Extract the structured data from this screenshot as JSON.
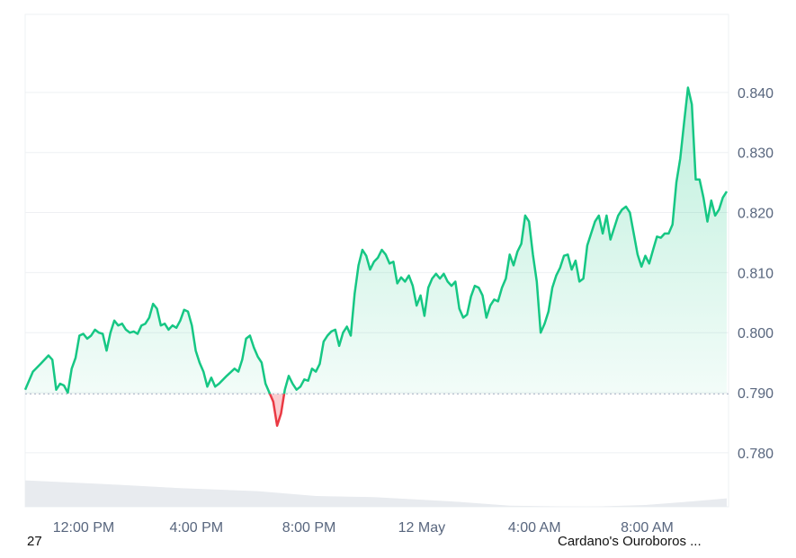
{
  "chart_data": {
    "type": "area",
    "y_ticks": [
      "0.840",
      "0.830",
      "0.820",
      "0.810",
      "0.800",
      "0.790",
      "0.780"
    ],
    "x_ticks": [
      "12:00 PM",
      "4:00 PM",
      "8:00 PM",
      "12 May",
      "4:00 AM",
      "8:00 AM"
    ],
    "ylim": [
      0.771,
      0.853
    ],
    "reference_value": 0.7898,
    "price_series": [
      [
        0,
        0.7905
      ],
      [
        2,
        0.7935
      ],
      [
        4,
        0.7948
      ],
      [
        6,
        0.7962
      ],
      [
        7,
        0.7955
      ],
      [
        8,
        0.7905
      ],
      [
        9,
        0.7915
      ],
      [
        10,
        0.7912
      ],
      [
        11,
        0.79
      ],
      [
        12,
        0.794
      ],
      [
        13,
        0.7958
      ],
      [
        14,
        0.7995
      ],
      [
        15,
        0.7998
      ],
      [
        16,
        0.799
      ],
      [
        17,
        0.7995
      ],
      [
        18,
        0.8005
      ],
      [
        19,
        0.8
      ],
      [
        20,
        0.7998
      ],
      [
        21,
        0.797
      ],
      [
        22,
        0.8
      ],
      [
        23,
        0.802
      ],
      [
        24,
        0.8012
      ],
      [
        25,
        0.8015
      ],
      [
        26,
        0.8005
      ],
      [
        27,
        0.8
      ],
      [
        28,
        0.8002
      ],
      [
        29,
        0.7998
      ],
      [
        30,
        0.8012
      ],
      [
        31,
        0.8015
      ],
      [
        32,
        0.8025
      ],
      [
        33,
        0.8048
      ],
      [
        34,
        0.804
      ],
      [
        35,
        0.8012
      ],
      [
        36,
        0.8015
      ],
      [
        37,
        0.8005
      ],
      [
        38,
        0.8012
      ],
      [
        39,
        0.8008
      ],
      [
        40,
        0.802
      ],
      [
        41,
        0.8038
      ],
      [
        42,
        0.8035
      ],
      [
        43,
        0.8012
      ],
      [
        44,
        0.797
      ],
      [
        45,
        0.795
      ],
      [
        46,
        0.7935
      ],
      [
        47,
        0.791
      ],
      [
        48,
        0.7925
      ],
      [
        49,
        0.791
      ],
      [
        50,
        0.7915
      ],
      [
        52,
        0.7928
      ],
      [
        54,
        0.794
      ],
      [
        55,
        0.7935
      ],
      [
        56,
        0.7955
      ],
      [
        57,
        0.799
      ],
      [
        58,
        0.7995
      ],
      [
        59,
        0.7975
      ],
      [
        60,
        0.796
      ],
      [
        61,
        0.795
      ],
      [
        62,
        0.7915
      ],
      [
        63,
        0.79
      ],
      [
        64,
        0.7885
      ],
      [
        65,
        0.7845
      ],
      [
        66,
        0.7865
      ],
      [
        67,
        0.7905
      ],
      [
        68,
        0.7928
      ],
      [
        69,
        0.7915
      ],
      [
        70,
        0.7905
      ],
      [
        71,
        0.791
      ],
      [
        72,
        0.7922
      ],
      [
        73,
        0.792
      ],
      [
        74,
        0.794
      ],
      [
        75,
        0.7935
      ],
      [
        76,
        0.7948
      ],
      [
        77,
        0.7985
      ],
      [
        78,
        0.7995
      ],
      [
        79,
        0.8002
      ],
      [
        80,
        0.8005
      ],
      [
        81,
        0.7978
      ],
      [
        82,
        0.8
      ],
      [
        83,
        0.801
      ],
      [
        84,
        0.7995
      ],
      [
        85,
        0.8065
      ],
      [
        86,
        0.8112
      ],
      [
        87,
        0.8138
      ],
      [
        88,
        0.8128
      ],
      [
        89,
        0.8105
      ],
      [
        90,
        0.8118
      ],
      [
        91,
        0.8125
      ],
      [
        92,
        0.8138
      ],
      [
        93,
        0.813
      ],
      [
        94,
        0.8115
      ],
      [
        95,
        0.8118
      ],
      [
        96,
        0.8082
      ],
      [
        97,
        0.8092
      ],
      [
        98,
        0.8085
      ],
      [
        99,
        0.8095
      ],
      [
        100,
        0.8078
      ],
      [
        101,
        0.8045
      ],
      [
        102,
        0.8062
      ],
      [
        103,
        0.8028
      ],
      [
        104,
        0.8075
      ],
      [
        105,
        0.809
      ],
      [
        106,
        0.8098
      ],
      [
        107,
        0.809
      ],
      [
        108,
        0.8098
      ],
      [
        109,
        0.8085
      ],
      [
        110,
        0.8078
      ],
      [
        111,
        0.8085
      ],
      [
        112,
        0.804
      ],
      [
        113,
        0.8025
      ],
      [
        114,
        0.803
      ],
      [
        115,
        0.806
      ],
      [
        116,
        0.8078
      ],
      [
        117,
        0.8075
      ],
      [
        118,
        0.8062
      ],
      [
        119,
        0.8025
      ],
      [
        120,
        0.8045
      ],
      [
        121,
        0.8055
      ],
      [
        122,
        0.8052
      ],
      [
        123,
        0.8075
      ],
      [
        124,
        0.809
      ],
      [
        125,
        0.813
      ],
      [
        126,
        0.8112
      ],
      [
        127,
        0.8135
      ],
      [
        128,
        0.8148
      ],
      [
        129,
        0.8195
      ],
      [
        130,
        0.8185
      ],
      [
        131,
        0.813
      ],
      [
        132,
        0.8085
      ],
      [
        133,
        0.8
      ],
      [
        134,
        0.8015
      ],
      [
        135,
        0.8035
      ],
      [
        136,
        0.8075
      ],
      [
        137,
        0.8095
      ],
      [
        138,
        0.8108
      ],
      [
        139,
        0.8128
      ],
      [
        140,
        0.813
      ],
      [
        141,
        0.8105
      ],
      [
        142,
        0.812
      ],
      [
        143,
        0.8085
      ],
      [
        144,
        0.809
      ],
      [
        145,
        0.8145
      ],
      [
        146,
        0.8165
      ],
      [
        147,
        0.8185
      ],
      [
        148,
        0.8195
      ],
      [
        149,
        0.8165
      ],
      [
        150,
        0.8195
      ],
      [
        151,
        0.8155
      ],
      [
        152,
        0.8175
      ],
      [
        153,
        0.8195
      ],
      [
        154,
        0.8205
      ],
      [
        155,
        0.821
      ],
      [
        156,
        0.82
      ],
      [
        157,
        0.8165
      ],
      [
        158,
        0.813
      ],
      [
        159,
        0.811
      ],
      [
        160,
        0.8128
      ],
      [
        161,
        0.8115
      ],
      [
        162,
        0.8138
      ],
      [
        163,
        0.816
      ],
      [
        164,
        0.8158
      ],
      [
        165,
        0.8165
      ],
      [
        166,
        0.8165
      ],
      [
        167,
        0.818
      ],
      [
        168,
        0.825
      ],
      [
        169,
        0.829
      ],
      [
        170,
        0.835
      ],
      [
        171,
        0.8408
      ],
      [
        172,
        0.838
      ],
      [
        173,
        0.8255
      ],
      [
        174,
        0.8255
      ],
      [
        175,
        0.8225
      ],
      [
        176,
        0.8185
      ],
      [
        177,
        0.822
      ],
      [
        178,
        0.8195
      ],
      [
        179,
        0.8205
      ],
      [
        180,
        0.8225
      ],
      [
        181,
        0.8235
      ]
    ],
    "volume_series": [
      [
        0,
        0.7754
      ],
      [
        20,
        0.7748
      ],
      [
        40,
        0.7741
      ],
      [
        60,
        0.7736
      ],
      [
        75,
        0.7728
      ],
      [
        90,
        0.7726
      ],
      [
        110,
        0.7719
      ],
      [
        125,
        0.7712
      ],
      [
        145,
        0.771
      ],
      [
        160,
        0.7713
      ],
      [
        172,
        0.7719
      ],
      [
        181,
        0.7724
      ]
    ]
  },
  "colors": {
    "up": "#16c784",
    "down": "#ea3943",
    "grid": "#eef0f3",
    "volume": "#e8ebef",
    "reference": "#a6b0c3"
  },
  "footer": {
    "left": "27",
    "right": "Cardano's Ouroboros ..."
  }
}
